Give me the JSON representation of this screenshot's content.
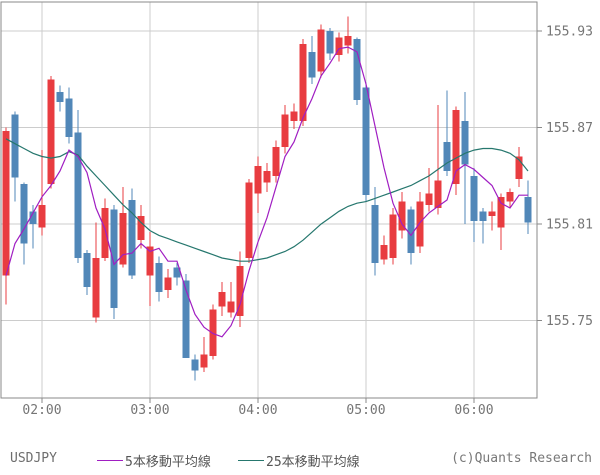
{
  "chart_data": {
    "type": "candlestick",
    "symbol": "USDJPY",
    "interval_minutes": 5,
    "grid": true,
    "ylim": [
      155.702,
      155.948
    ],
    "y_ticks": [
      "155.93",
      "155.87",
      "155.81",
      "155.75"
    ],
    "y_tick_values": [
      155.93,
      155.87,
      155.81,
      155.75
    ],
    "x_ticks": [
      "02:00",
      "03:00",
      "04:00",
      "05:00",
      "06:00"
    ],
    "candles": [
      [
        "01:40",
        155.778,
        155.87,
        155.76,
        155.868
      ],
      [
        "01:45",
        155.878,
        155.88,
        155.824,
        155.839
      ],
      [
        "01:50",
        155.835,
        155.836,
        155.785,
        155.798
      ],
      [
        "01:55",
        155.818,
        155.822,
        155.795,
        155.81
      ],
      [
        "02:00",
        155.808,
        155.856,
        155.803,
        155.822
      ],
      [
        "02:05",
        155.835,
        155.902,
        155.832,
        155.9
      ],
      [
        "02:10",
        155.892,
        155.896,
        155.88,
        155.886
      ],
      [
        "02:15",
        155.888,
        155.895,
        155.86,
        155.864
      ],
      [
        "02:20",
        155.867,
        155.881,
        155.786,
        155.789
      ],
      [
        "02:25",
        155.792,
        155.794,
        155.766,
        155.771
      ],
      [
        "02:30",
        155.752,
        155.811,
        155.749,
        155.789
      ],
      [
        "02:35",
        155.789,
        155.826,
        155.787,
        155.82
      ],
      [
        "02:40",
        155.819,
        155.822,
        155.751,
        155.758
      ],
      [
        "02:45",
        155.785,
        155.833,
        155.783,
        155.817
      ],
      [
        "02:50",
        155.825,
        155.832,
        155.776,
        155.778
      ],
      [
        "02:55",
        155.8,
        155.822,
        155.795,
        155.815
      ],
      [
        "03:00",
        155.778,
        155.805,
        155.759,
        155.796
      ],
      [
        "03:05",
        155.786,
        155.79,
        155.762,
        155.768
      ],
      [
        "03:10",
        155.769,
        155.782,
        155.764,
        155.777
      ],
      [
        "03:15",
        155.783,
        155.786,
        155.772,
        155.777
      ],
      [
        "03:20",
        155.775,
        155.779,
        155.727,
        155.727
      ],
      [
        "03:25",
        155.726,
        155.729,
        155.713,
        155.719
      ],
      [
        "03:30",
        155.721,
        155.74,
        155.718,
        155.729
      ],
      [
        "03:35",
        155.728,
        155.76,
        155.726,
        155.757
      ],
      [
        "03:40",
        155.759,
        155.774,
        155.753,
        155.768
      ],
      [
        "03:45",
        155.755,
        155.774,
        155.752,
        155.762
      ],
      [
        "03:50",
        155.753,
        155.793,
        155.746,
        155.784
      ],
      [
        "03:55",
        155.789,
        155.838,
        155.786,
        155.836
      ],
      [
        "04:00",
        155.829,
        155.852,
        155.817,
        155.846
      ],
      [
        "04:05",
        155.836,
        155.848,
        155.83,
        155.843
      ],
      [
        "04:10",
        155.84,
        155.862,
        155.836,
        155.858
      ],
      [
        "04:15",
        155.858,
        155.884,
        155.854,
        155.878
      ],
      [
        "04:20",
        155.874,
        155.885,
        155.869,
        155.88
      ],
      [
        "04:25",
        155.874,
        155.925,
        155.871,
        155.922
      ],
      [
        "04:30",
        155.917,
        155.927,
        155.897,
        155.901
      ],
      [
        "04:35",
        155.905,
        155.934,
        155.901,
        155.931
      ],
      [
        "04:40",
        155.93,
        155.932,
        155.912,
        155.916
      ],
      [
        "04:45",
        155.915,
        155.929,
        155.911,
        155.926
      ],
      [
        "04:50",
        155.921,
        155.939,
        155.916,
        155.927
      ],
      [
        "04:55",
        155.925,
        155.926,
        155.884,
        155.887
      ],
      [
        "05:00",
        155.895,
        155.898,
        155.824,
        155.828
      ],
      [
        "05:05",
        155.822,
        155.833,
        155.778,
        155.786
      ],
      [
        "05:10",
        155.788,
        155.803,
        155.785,
        155.797
      ],
      [
        "05:15",
        155.789,
        155.82,
        155.785,
        155.816
      ],
      [
        "05:20",
        155.806,
        155.83,
        155.801,
        155.824
      ],
      [
        "05:25",
        155.819,
        155.821,
        155.785,
        155.792
      ],
      [
        "05:30",
        155.796,
        155.83,
        155.792,
        155.824
      ],
      [
        "05:35",
        155.822,
        155.845,
        155.818,
        155.829
      ],
      [
        "05:40",
        155.82,
        155.884,
        155.816,
        155.837
      ],
      [
        "05:45",
        155.861,
        155.893,
        155.84,
        155.843
      ],
      [
        "05:50",
        155.835,
        155.883,
        155.828,
        155.881
      ],
      [
        "05:55",
        155.874,
        155.892,
        155.81,
        155.847
      ],
      [
        "06:00",
        155.84,
        155.845,
        155.799,
        155.812
      ],
      [
        "06:05",
        155.818,
        155.82,
        155.798,
        155.812
      ],
      [
        "06:10",
        155.815,
        155.824,
        155.806,
        155.818
      ],
      [
        "06:15",
        155.808,
        155.829,
        155.794,
        155.827
      ],
      [
        "06:20",
        155.824,
        155.832,
        155.82,
        155.83
      ],
      [
        "06:25",
        155.838,
        155.858,
        155.833,
        155.852
      ],
      [
        "06:30",
        155.827,
        155.837,
        155.804,
        155.811
      ]
    ],
    "series": [
      {
        "name": "5本移動平均線",
        "values": [
          155.778,
          155.798,
          155.807,
          155.817,
          155.827,
          155.834,
          155.843,
          155.856,
          155.852,
          155.842,
          155.82,
          155.807,
          155.785,
          155.791,
          155.792,
          155.798,
          155.793,
          155.795,
          155.787,
          155.787,
          155.769,
          155.754,
          155.746,
          155.742,
          155.74,
          155.747,
          155.76,
          155.781,
          155.799,
          155.814,
          155.833,
          155.852,
          155.861,
          155.876,
          155.888,
          155.902,
          155.91,
          155.919,
          155.92,
          155.917,
          155.897,
          155.871,
          155.845,
          155.823,
          155.81,
          155.803,
          155.811,
          155.817,
          155.821,
          155.825,
          155.843,
          155.847,
          155.844,
          155.839,
          155.834,
          155.823,
          155.82,
          155.828,
          155.828
        ]
      },
      {
        "name": "25本移動平均線",
        "values": [
          155.863,
          155.86,
          155.857,
          155.854,
          155.852,
          155.851,
          155.852,
          155.855,
          155.853,
          155.846,
          155.84,
          155.834,
          155.828,
          155.822,
          155.817,
          155.811,
          155.806,
          155.803,
          155.801,
          155.799,
          155.797,
          155.795,
          155.793,
          155.791,
          155.789,
          155.788,
          155.787,
          155.787,
          155.788,
          155.789,
          155.791,
          155.793,
          155.796,
          155.8,
          155.805,
          155.81,
          155.814,
          155.818,
          155.821,
          155.823,
          155.824,
          155.826,
          155.828,
          155.83,
          155.832,
          155.834,
          155.837,
          155.84,
          155.844,
          155.848,
          155.851,
          155.854,
          155.856,
          155.857,
          155.857,
          155.856,
          155.854,
          155.85,
          155.843
        ]
      }
    ],
    "colors": {
      "up_candle": "#e83c40",
      "down_candle": "#5187b8",
      "ma5": "#a01ec2",
      "ma25": "#26776e",
      "grid": "#cccccc",
      "border": "#8a8a8a",
      "axis_text": "#757575"
    },
    "legend_position": "bottom"
  },
  "footer": {
    "symbol_label": "USDJPY",
    "legend": [
      {
        "label": "5本移動平均線",
        "color": "#a01ec2"
      },
      {
        "label": "25本移動平均線",
        "color": "#26776e"
      }
    ],
    "copyright": "(c)Quants Research"
  }
}
